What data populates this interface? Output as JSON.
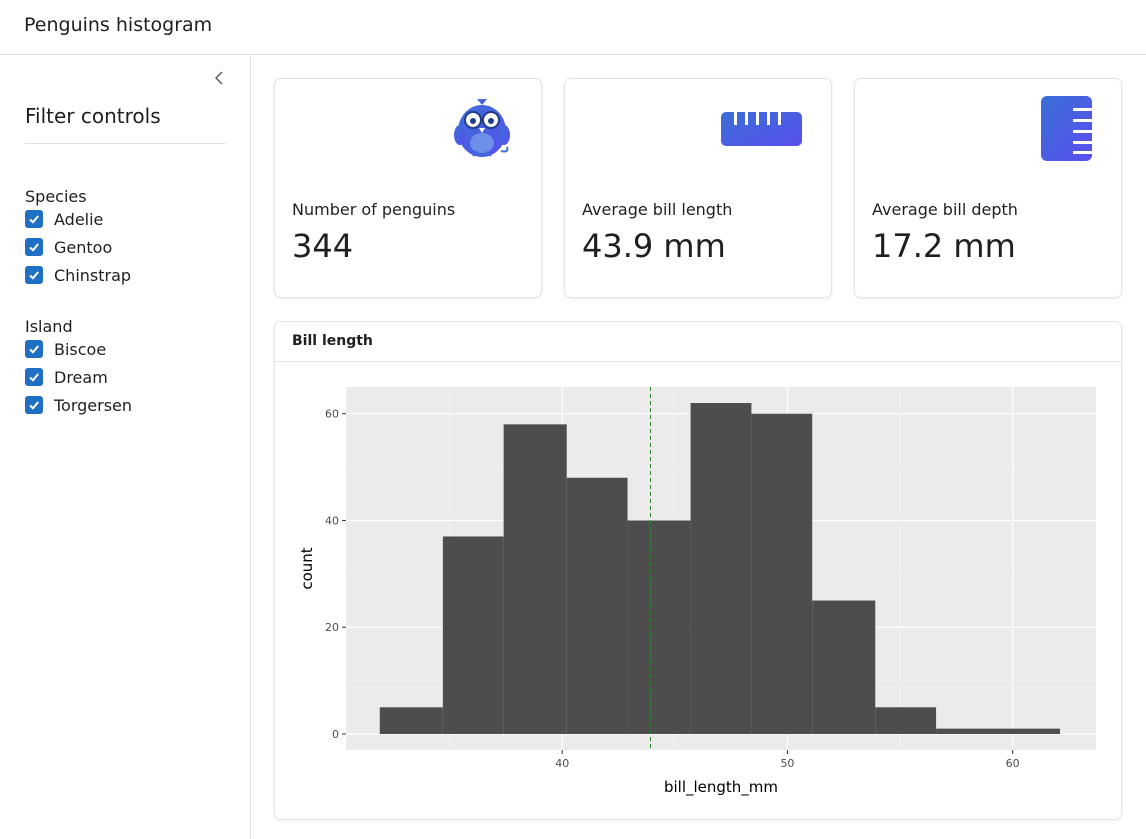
{
  "app": {
    "title": "Penguins histogram"
  },
  "sidebar": {
    "title": "Filter controls",
    "species": {
      "label": "Species",
      "options": [
        {
          "label": "Adelie",
          "checked": true
        },
        {
          "label": "Gentoo",
          "checked": true
        },
        {
          "label": "Chinstrap",
          "checked": true
        }
      ]
    },
    "island": {
      "label": "Island",
      "options": [
        {
          "label": "Biscoe",
          "checked": true
        },
        {
          "label": "Dream",
          "checked": true
        },
        {
          "label": "Torgersen",
          "checked": true
        }
      ]
    }
  },
  "value_boxes": [
    {
      "label": "Number of penguins",
      "value": "344",
      "icon": "penguin-owl-icon"
    },
    {
      "label": "Average bill length",
      "value": "43.9 mm",
      "icon": "ruler-horizontal-icon"
    },
    {
      "label": "Average bill depth",
      "value": "17.2 mm",
      "icon": "ruler-vertical-icon"
    }
  ],
  "colors": {
    "accent": "#1f6fc5",
    "icon_gradient_start": "#3a6fd6",
    "icon_gradient_end": "#5a4ff0",
    "bars": "#4d4d4d",
    "panel_bg": "#ebebeb",
    "mean_line": "#2e8b2e"
  },
  "plot_card": {
    "header": "Bill length"
  },
  "chart_data": {
    "type": "bar",
    "title": "",
    "xlabel": "bill_length_mm",
    "ylabel": "count",
    "xlim": [
      30.4,
      63.7
    ],
    "ylim": [
      -3,
      65
    ],
    "x_ticks": [
      40,
      50,
      60
    ],
    "y_ticks": [
      0,
      20,
      40,
      60
    ],
    "grid": true,
    "bins": [
      {
        "x0": 31.9,
        "x1": 34.7,
        "count": 5
      },
      {
        "x0": 34.7,
        "x1": 37.4,
        "count": 37
      },
      {
        "x0": 37.4,
        "x1": 40.2,
        "count": 58
      },
      {
        "x0": 40.2,
        "x1": 42.9,
        "count": 48
      },
      {
        "x0": 42.9,
        "x1": 45.7,
        "count": 40
      },
      {
        "x0": 45.7,
        "x1": 48.4,
        "count": 62
      },
      {
        "x0": 48.4,
        "x1": 51.1,
        "count": 60
      },
      {
        "x0": 51.1,
        "x1": 53.9,
        "count": 25
      },
      {
        "x0": 53.9,
        "x1": 56.6,
        "count": 5
      },
      {
        "x0": 56.6,
        "x1": 62.1,
        "count": 1
      }
    ],
    "mean_line_x": 43.92
  }
}
